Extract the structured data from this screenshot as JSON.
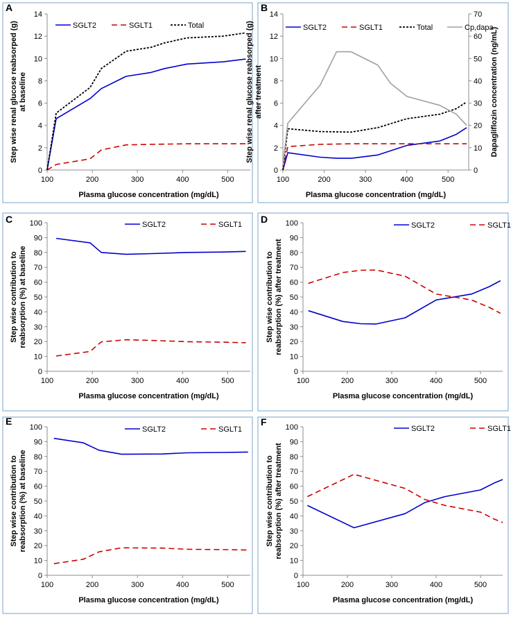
{
  "figure": {
    "panels": [
      {
        "letter": "A",
        "xlabel": "Plasma glucose concentration (mg/dL)",
        "ylabel": [
          "Step wise renal glucose reabsorped (g)",
          "at baseline"
        ],
        "y2label": ""
      },
      {
        "letter": "B",
        "xlabel": "Plasma glucose concentration (mg/dL)",
        "ylabel": [
          "Step wise renal glucose reabsorped (g)",
          "after treatment"
        ],
        "y2label": "Dapagliflozin concentration (ng/mL)"
      },
      {
        "letter": "C",
        "xlabel": "Plasma glucose concentration (mg/dL)",
        "ylabel": [
          "Step wise contribution to",
          "reabsorption (%) at baseline"
        ],
        "y2label": ""
      },
      {
        "letter": "D",
        "xlabel": "Plasma glucose concentration (mg/dL)",
        "ylabel": [
          "Step wise contribution to",
          "reabsorption (%) after treatment"
        ],
        "y2label": ""
      },
      {
        "letter": "E",
        "xlabel": "Plasma glucose concentration (mg/dL)",
        "ylabel": [
          "Step wise contribution to",
          "reabsorption (%) at baseline"
        ],
        "y2label": ""
      },
      {
        "letter": "F",
        "xlabel": "Plasma glucose concentration (mg/dL)",
        "ylabel": [
          "Step wise contribution to",
          "reabsorption (%) after treatment"
        ],
        "y2label": ""
      }
    ]
  },
  "colors": {
    "sglt2": "#0000cc",
    "sglt1": "#cc0000",
    "total": "#000000",
    "cpdapa": "#a0a0a0",
    "cpdapa_label": "#948a54",
    "axis": "#8c8c8c",
    "border": "#8fb0d4"
  },
  "chart_data": [
    {
      "panel": "A",
      "type": "line",
      "xlim": [
        100,
        550
      ],
      "xticks": [
        100,
        200,
        300,
        400,
        500
      ],
      "ylim": [
        0,
        14
      ],
      "yticks": [
        0,
        2,
        4,
        6,
        8,
        10,
        12,
        14
      ],
      "series": [
        {
          "name": "SGLT2",
          "style": "solid",
          "color": "#0000cc",
          "x": [
            100,
            120,
            195,
            220,
            275,
            330,
            360,
            410,
            490,
            540
          ],
          "y": [
            0,
            4.6,
            6.4,
            7.3,
            8.4,
            8.75,
            9.1,
            9.5,
            9.7,
            9.95
          ]
        },
        {
          "name": "SGLT1",
          "style": "dashed",
          "color": "#cc0000",
          "x": [
            100,
            120,
            195,
            220,
            275,
            330,
            410,
            490,
            540
          ],
          "y": [
            0,
            0.5,
            1.0,
            1.8,
            2.25,
            2.3,
            2.35,
            2.35,
            2.35
          ]
        },
        {
          "name": "Total",
          "style": "dotted",
          "color": "#000000",
          "x": [
            100,
            120,
            195,
            220,
            275,
            330,
            360,
            410,
            490,
            540
          ],
          "y": [
            0,
            5.1,
            7.4,
            9.1,
            10.65,
            11.0,
            11.4,
            11.85,
            12.0,
            12.3
          ]
        }
      ]
    },
    {
      "panel": "B",
      "type": "line",
      "xlim": [
        100,
        550
      ],
      "xticks": [
        100,
        200,
        300,
        400,
        500
      ],
      "ylim": [
        0,
        14
      ],
      "yticks": [
        0,
        2,
        4,
        6,
        8,
        10,
        12,
        14
      ],
      "y2lim": [
        0,
        70
      ],
      "y2ticks": [
        0,
        10,
        20,
        30,
        40,
        50,
        60,
        70
      ],
      "series": [
        {
          "name": "SGLT2",
          "style": "solid",
          "color": "#0000cc",
          "axis": "left",
          "x": [
            100,
            112,
            190,
            230,
            265,
            330,
            400,
            480,
            520,
            545
          ],
          "y": [
            0,
            1.55,
            1.15,
            1.05,
            1.05,
            1.35,
            2.2,
            2.6,
            3.2,
            3.8
          ]
        },
        {
          "name": "SGLT1",
          "style": "dashed",
          "color": "#cc0000",
          "axis": "left",
          "x": [
            100,
            112,
            190,
            265,
            330,
            400,
            480,
            545
          ],
          "y": [
            0,
            2.1,
            2.3,
            2.35,
            2.35,
            2.35,
            2.35,
            2.35
          ]
        },
        {
          "name": "Total",
          "style": "dotted",
          "color": "#000000",
          "axis": "left",
          "x": [
            100,
            112,
            190,
            265,
            330,
            400,
            480,
            520,
            545
          ],
          "y": [
            0,
            3.7,
            3.45,
            3.4,
            3.8,
            4.6,
            5.0,
            5.5,
            6.1
          ]
        },
        {
          "name": "Cp,dapa",
          "style": "solid",
          "color": "#a0a0a0",
          "axis": "right",
          "x": [
            100,
            112,
            190,
            230,
            265,
            330,
            360,
            400,
            480,
            520,
            545
          ],
          "y": [
            2,
            21,
            38,
            53,
            53,
            47,
            39,
            33,
            29,
            25,
            20
          ]
        }
      ]
    },
    {
      "panel": "C",
      "type": "line",
      "xlim": [
        100,
        550
      ],
      "xticks": [
        100,
        200,
        300,
        400,
        500
      ],
      "ylim": [
        0,
        100
      ],
      "yticks": [
        0,
        10,
        20,
        30,
        40,
        50,
        60,
        70,
        80,
        90,
        100
      ],
      "series": [
        {
          "name": "SGLT2",
          "style": "solid",
          "color": "#0000cc",
          "x": [
            120,
            195,
            220,
            275,
            330,
            410,
            490,
            540
          ],
          "y": [
            89.5,
            86.5,
            80.0,
            78.8,
            79.2,
            80.0,
            80.3,
            80.7
          ]
        },
        {
          "name": "SGLT1",
          "style": "dashed",
          "color": "#cc0000",
          "x": [
            120,
            195,
            220,
            275,
            330,
            410,
            490,
            540
          ],
          "y": [
            10.3,
            13.3,
            19.8,
            21.2,
            20.8,
            19.9,
            19.6,
            19.2
          ]
        }
      ]
    },
    {
      "panel": "D",
      "type": "line",
      "xlim": [
        100,
        550
      ],
      "xticks": [
        100,
        200,
        300,
        400,
        500
      ],
      "ylim": [
        0,
        100
      ],
      "yticks": [
        0,
        10,
        20,
        30,
        40,
        50,
        60,
        70,
        80,
        90,
        100
      ],
      "series": [
        {
          "name": "SGLT2",
          "style": "solid",
          "color": "#0000cc",
          "x": [
            112,
            190,
            230,
            265,
            330,
            400,
            480,
            520,
            545
          ],
          "y": [
            40.8,
            33.5,
            32.0,
            31.8,
            36.0,
            48.0,
            52.0,
            57.0,
            61.0
          ]
        },
        {
          "name": "SGLT1",
          "style": "dashed",
          "color": "#cc0000",
          "x": [
            112,
            190,
            230,
            265,
            330,
            400,
            480,
            520,
            545
          ],
          "y": [
            59.2,
            66.5,
            68.0,
            68.2,
            64.0,
            52.0,
            48.0,
            43.0,
            39.0
          ]
        }
      ]
    },
    {
      "panel": "E",
      "type": "line",
      "xlim": [
        100,
        550
      ],
      "xticks": [
        100,
        200,
        300,
        400,
        500
      ],
      "ylim": [
        0,
        100
      ],
      "yticks": [
        0,
        10,
        20,
        30,
        40,
        50,
        60,
        70,
        80,
        90,
        100
      ],
      "series": [
        {
          "name": "SGLT2",
          "style": "solid",
          "color": "#0000cc",
          "x": [
            115,
            180,
            215,
            265,
            355,
            410,
            490,
            545
          ],
          "y": [
            92.2,
            89.2,
            84.2,
            81.5,
            81.7,
            82.5,
            82.7,
            83.0
          ]
        },
        {
          "name": "SGLT1",
          "style": "dashed",
          "color": "#cc0000",
          "x": [
            115,
            180,
            215,
            265,
            355,
            410,
            490,
            545
          ],
          "y": [
            7.8,
            10.8,
            15.8,
            18.5,
            18.3,
            17.5,
            17.3,
            17.0
          ]
        }
      ]
    },
    {
      "panel": "F",
      "type": "line",
      "xlim": [
        100,
        550
      ],
      "xticks": [
        100,
        200,
        300,
        400,
        500
      ],
      "ylim": [
        0,
        100
      ],
      "yticks": [
        0,
        10,
        20,
        30,
        40,
        50,
        60,
        70,
        80,
        90,
        100
      ],
      "series": [
        {
          "name": "SGLT2",
          "style": "solid",
          "color": "#0000cc",
          "x": [
            110,
            215,
            330,
            375,
            420,
            500,
            530,
            550
          ],
          "y": [
            47.0,
            32.0,
            41.5,
            49.0,
            53.0,
            57.5,
            62.0,
            64.5
          ]
        },
        {
          "name": "SGLT1",
          "style": "dashed",
          "color": "#cc0000",
          "x": [
            110,
            215,
            330,
            375,
            420,
            500,
            530,
            550
          ],
          "y": [
            53.0,
            68.0,
            58.5,
            51.0,
            47.0,
            42.5,
            38.0,
            35.5
          ]
        }
      ]
    }
  ]
}
